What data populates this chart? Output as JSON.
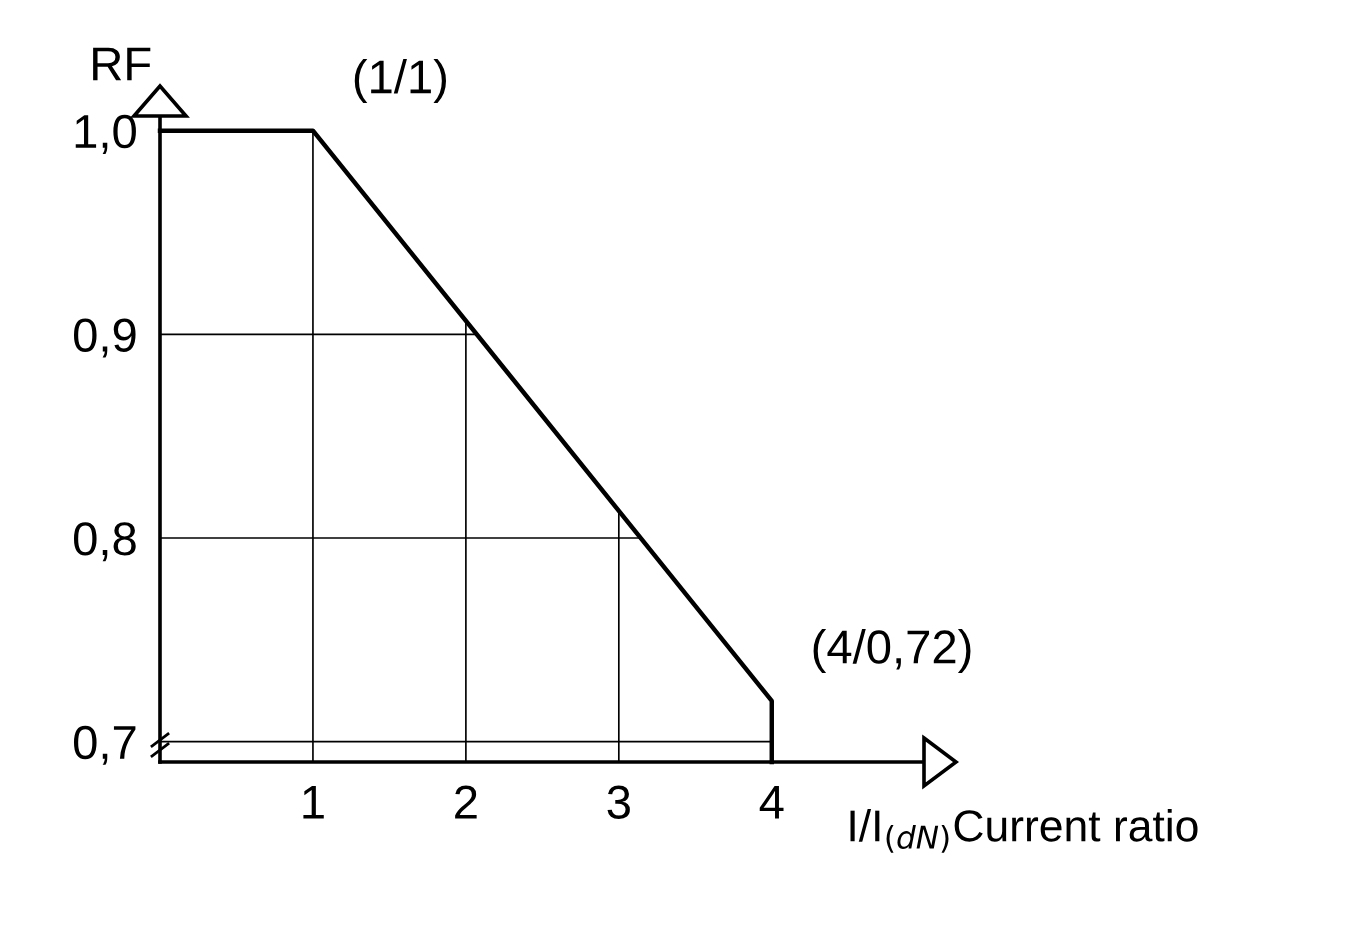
{
  "chart_data": {
    "type": "line",
    "x": [
      0,
      1,
      4,
      4
    ],
    "series": [
      {
        "color": "#000000",
        "values": [
          1.0,
          1.0,
          0.72,
          0.69
        ]
      }
    ],
    "xlim": [
      0,
      5.1
    ],
    "ylim": [
      0.69,
      1.02
    ],
    "xticks": [
      1,
      2,
      3,
      4
    ],
    "yticks": [
      {
        "value": 0.7,
        "label": "0,7"
      },
      {
        "value": 0.8,
        "label": "0,8"
      },
      {
        "value": 0.9,
        "label": "0,9"
      },
      {
        "value": 1.0,
        "label": "1,0"
      }
    ],
    "xlabel": "I/I$_{(dN)}$Current ratio",
    "ylabel": "RF",
    "annotations": [
      {
        "text": "(1/1)",
        "x": 1,
        "y": 1.0
      },
      {
        "text": "(4/0,72)",
        "x": 4,
        "y": 0.72
      }
    ],
    "grid": true,
    "marker": "none",
    "line_style": "solid"
  }
}
